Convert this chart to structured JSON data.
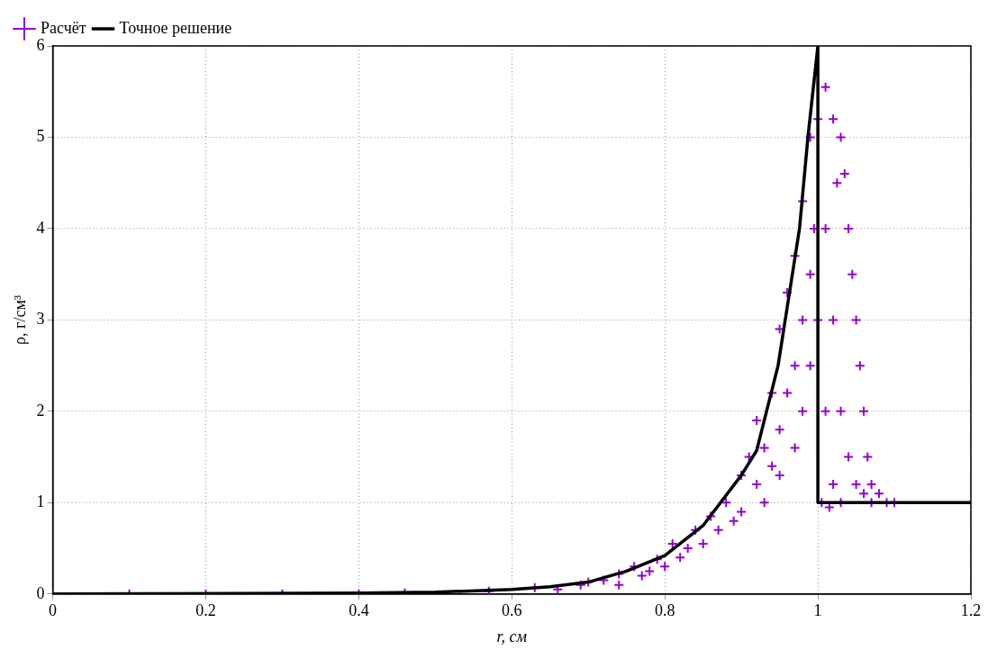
{
  "chart_data": {
    "type": "scatter",
    "xlabel": "r, см",
    "ylabel": "ρ, г/см³",
    "xlim": [
      0,
      1.2
    ],
    "ylim": [
      0,
      6
    ],
    "xticks": [
      0,
      0.2,
      0.4,
      0.6,
      0.8,
      1,
      1.2
    ],
    "yticks": [
      0,
      1,
      2,
      3,
      4,
      5,
      6
    ],
    "grid": true,
    "legend": "top left",
    "series": [
      {
        "name": "Расчёт",
        "type": "scatter",
        "marker": "cross",
        "color": "#9400d3",
        "x": [
          0,
          0.1,
          0.2,
          0.3,
          0.4,
          0.46,
          0.57,
          0.63,
          0.66,
          0.69,
          0.7,
          0.72,
          0.74,
          0.74,
          0.76,
          0.77,
          0.78,
          0.79,
          0.8,
          0.81,
          0.82,
          0.83,
          0.84,
          0.85,
          0.86,
          0.87,
          0.88,
          0.89,
          0.9,
          0.9,
          0.91,
          0.92,
          0.92,
          0.93,
          0.94,
          0.94,
          0.95,
          0.95,
          0.96,
          0.96,
          0.97,
          0.97,
          0.98,
          0.98,
          0.99,
          0.99,
          0.995,
          1,
          0.93,
          0.95,
          0.97,
          0.98,
          0.99,
          1.0,
          1.005,
          1.01,
          1.01,
          1.01,
          1.015,
          1.02,
          1.02,
          1.02,
          1.025,
          1.03,
          1.03,
          1.03,
          1.035,
          1.04,
          1.04,
          1.045,
          1.05,
          1.05,
          1.055,
          1.06,
          1.06,
          1.065,
          1.07,
          1.07,
          1.08,
          1.09,
          1.1
        ],
        "values": [
          0,
          0,
          0,
          0,
          0,
          0.01,
          0.03,
          0.07,
          0.05,
          0.1,
          0.13,
          0.15,
          0.22,
          0.1,
          0.3,
          0.2,
          0.25,
          0.38,
          0.3,
          0.55,
          0.4,
          0.5,
          0.7,
          0.55,
          0.85,
          0.7,
          1.0,
          0.8,
          1.3,
          0.9,
          1.5,
          1.2,
          1.9,
          1.6,
          2.2,
          1.4,
          2.9,
          1.8,
          3.3,
          2.2,
          3.7,
          2.5,
          4.3,
          3.0,
          5.0,
          3.5,
          4.0,
          5.2,
          1.0,
          1.3,
          1.6,
          2.0,
          2.5,
          3.0,
          1.0,
          5.55,
          4.0,
          2.0,
          0.95,
          5.2,
          3.0,
          1.2,
          4.5,
          5.0,
          2.0,
          1.0,
          4.6,
          4.0,
          1.5,
          3.5,
          3.0,
          1.2,
          2.5,
          2.0,
          1.1,
          1.5,
          1.2,
          1.0,
          1.1,
          1.0,
          1.0
        ]
      },
      {
        "name": "Точное решение",
        "type": "line",
        "color": "#000000",
        "x": [
          0,
          0.4,
          0.5,
          0.6,
          0.65,
          0.7,
          0.75,
          0.8,
          0.85,
          0.9,
          0.92,
          0.948,
          0.976,
          0.987,
          1,
          1,
          1.2
        ],
        "values": [
          0,
          0.01,
          0.02,
          0.05,
          0.08,
          0.13,
          0.25,
          0.42,
          0.75,
          1.3,
          1.57,
          2.5,
          4.0,
          5.0,
          6,
          1,
          1
        ]
      }
    ]
  }
}
